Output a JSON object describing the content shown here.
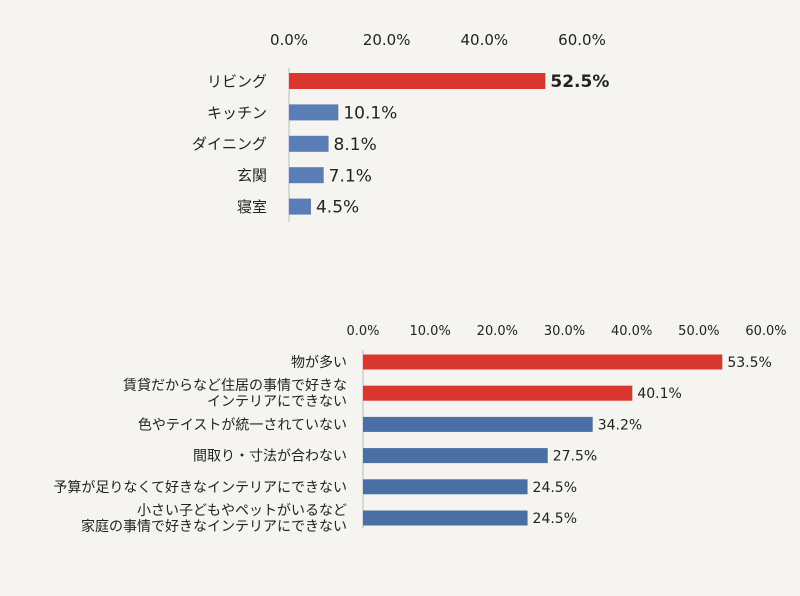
{
  "colors": {
    "background": "#f5f4f0",
    "highlight": "#d9362f",
    "bar": "#5b7db5",
    "bar_dark": "#4a6fa5",
    "axis": "#bcbcbc"
  },
  "chart_data": [
    {
      "type": "bar",
      "orientation": "horizontal",
      "categories": [
        "リビング",
        "キッチン",
        "ダイニング",
        "玄関",
        "寝室"
      ],
      "values": [
        52.5,
        10.1,
        8.1,
        7.1,
        4.5
      ],
      "value_labels": [
        "52.5%",
        "10.1%",
        "8.1%",
        "7.1%",
        "4.5%"
      ],
      "highlight": [
        true,
        false,
        false,
        false,
        false
      ],
      "ticks": [
        "0.0%",
        "20.0%",
        "40.0%",
        "60.0%"
      ],
      "xlim": [
        0,
        60
      ],
      "axis_position": "top",
      "grid": false,
      "legend": "none"
    },
    {
      "type": "bar",
      "orientation": "horizontal",
      "categories": [
        [
          "物が多い"
        ],
        [
          "賃貸だからなど住居の事情で好きな",
          "インテリアにできない"
        ],
        [
          "色やテイストが統一されていない"
        ],
        [
          "間取り・寸法が合わない"
        ],
        [
          "予算が足りなくて好きなインテリアにできない"
        ],
        [
          "小さい子どもやペットがいるなど",
          "家庭の事情で好きなインテリアにできない"
        ]
      ],
      "values": [
        53.5,
        40.1,
        34.2,
        27.5,
        24.5,
        24.5
      ],
      "value_labels": [
        "53.5%",
        "40.1%",
        "34.2%",
        "27.5%",
        "24.5%",
        "24.5%"
      ],
      "highlight": [
        true,
        true,
        false,
        false,
        false,
        false
      ],
      "ticks": [
        "0.0%",
        "10.0%",
        "20.0%",
        "30.0%",
        "40.0%",
        "50.0%",
        "60.0%"
      ],
      "xlim": [
        0,
        60
      ],
      "axis_position": "top",
      "grid": false,
      "legend": "none"
    }
  ]
}
